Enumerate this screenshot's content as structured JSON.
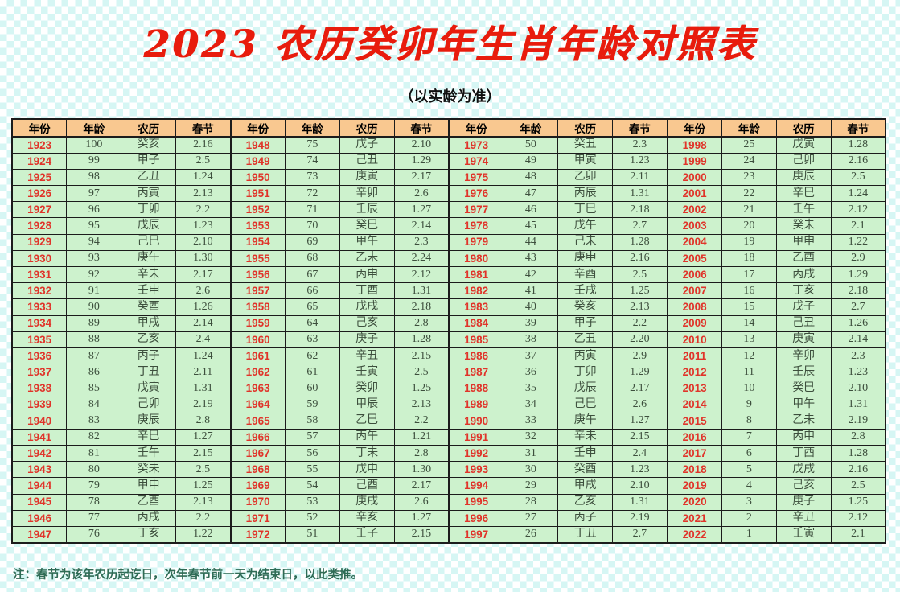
{
  "title": "2023 农历癸卯年生肖年龄对照表",
  "subtitle": "（以实龄为准）",
  "footnote": "注：春节为该年农历起讫日，次年春节前一天为结束日，以此类推。",
  "colors": {
    "title_red": "#e81c0d",
    "year_red": "#e0342a",
    "header_bg": "#f9c890",
    "cell_bg": "#cdf2cd",
    "checker": "#d6f6f4",
    "border": "#1c1c1c",
    "body_text": "#3d4f3d",
    "footnote_text": "#2f6b55"
  },
  "table": {
    "column_headers": [
      "年份",
      "年龄",
      "农历",
      "春节"
    ],
    "column_keys": [
      "year",
      "age",
      "lunar",
      "festival"
    ],
    "group_count": 4,
    "rows": [
      [
        [
          "1923",
          "100",
          "癸亥",
          "2.16"
        ],
        [
          "1948",
          "75",
          "戊子",
          "2.10"
        ],
        [
          "1973",
          "50",
          "癸丑",
          "2.3"
        ],
        [
          "1998",
          "25",
          "戊寅",
          "1.28"
        ]
      ],
      [
        [
          "1924",
          "99",
          "甲子",
          "2.5"
        ],
        [
          "1949",
          "74",
          "己丑",
          "1.29"
        ],
        [
          "1974",
          "49",
          "甲寅",
          "1.23"
        ],
        [
          "1999",
          "24",
          "己卯",
          "2.16"
        ]
      ],
      [
        [
          "1925",
          "98",
          "乙丑",
          "1.24"
        ],
        [
          "1950",
          "73",
          "庚寅",
          "2.17"
        ],
        [
          "1975",
          "48",
          "乙卯",
          "2.11"
        ],
        [
          "2000",
          "23",
          "庚辰",
          "2.5"
        ]
      ],
      [
        [
          "1926",
          "97",
          "丙寅",
          "2.13"
        ],
        [
          "1951",
          "72",
          "辛卯",
          "2.6"
        ],
        [
          "1976",
          "47",
          "丙辰",
          "1.31"
        ],
        [
          "2001",
          "22",
          "辛巳",
          "1.24"
        ]
      ],
      [
        [
          "1927",
          "96",
          "丁卯",
          "2.2"
        ],
        [
          "1952",
          "71",
          "壬辰",
          "1.27"
        ],
        [
          "1977",
          "46",
          "丁巳",
          "2.18"
        ],
        [
          "2002",
          "21",
          "壬午",
          "2.12"
        ]
      ],
      [
        [
          "1928",
          "95",
          "戊辰",
          "1.23"
        ],
        [
          "1953",
          "70",
          "癸巳",
          "2.14"
        ],
        [
          "1978",
          "45",
          "戊午",
          "2.7"
        ],
        [
          "2003",
          "20",
          "癸未",
          "2.1"
        ]
      ],
      [
        [
          "1929",
          "94",
          "己巳",
          "2.10"
        ],
        [
          "1954",
          "69",
          "甲午",
          "2.3"
        ],
        [
          "1979",
          "44",
          "己未",
          "1.28"
        ],
        [
          "2004",
          "19",
          "甲申",
          "1.22"
        ]
      ],
      [
        [
          "1930",
          "93",
          "庚午",
          "1.30"
        ],
        [
          "1955",
          "68",
          "乙未",
          "2.24"
        ],
        [
          "1980",
          "43",
          "庚申",
          "2.16"
        ],
        [
          "2005",
          "18",
          "乙酉",
          "2.9"
        ]
      ],
      [
        [
          "1931",
          "92",
          "辛未",
          "2.17"
        ],
        [
          "1956",
          "67",
          "丙申",
          "2.12"
        ],
        [
          "1981",
          "42",
          "辛酉",
          "2.5"
        ],
        [
          "2006",
          "17",
          "丙戌",
          "1.29"
        ]
      ],
      [
        [
          "1932",
          "91",
          "壬申",
          "2.6"
        ],
        [
          "1957",
          "66",
          "丁酉",
          "1.31"
        ],
        [
          "1982",
          "41",
          "壬戌",
          "1.25"
        ],
        [
          "2007",
          "16",
          "丁亥",
          "2.18"
        ]
      ],
      [
        [
          "1933",
          "90",
          "癸酉",
          "1.26"
        ],
        [
          "1958",
          "65",
          "戊戌",
          "2.18"
        ],
        [
          "1983",
          "40",
          "癸亥",
          "2.13"
        ],
        [
          "2008",
          "15",
          "戊子",
          "2.7"
        ]
      ],
      [
        [
          "1934",
          "89",
          "甲戌",
          "2.14"
        ],
        [
          "1959",
          "64",
          "己亥",
          "2.8"
        ],
        [
          "1984",
          "39",
          "甲子",
          "2.2"
        ],
        [
          "2009",
          "14",
          "己丑",
          "1.26"
        ]
      ],
      [
        [
          "1935",
          "88",
          "乙亥",
          "2.4"
        ],
        [
          "1960",
          "63",
          "庚子",
          "1.28"
        ],
        [
          "1985",
          "38",
          "乙丑",
          "2.20"
        ],
        [
          "2010",
          "13",
          "庚寅",
          "2.14"
        ]
      ],
      [
        [
          "1936",
          "87",
          "丙子",
          "1.24"
        ],
        [
          "1961",
          "62",
          "辛丑",
          "2.15"
        ],
        [
          "1986",
          "37",
          "丙寅",
          "2.9"
        ],
        [
          "2011",
          "12",
          "辛卯",
          "2.3"
        ]
      ],
      [
        [
          "1937",
          "86",
          "丁丑",
          "2.11"
        ],
        [
          "1962",
          "61",
          "壬寅",
          "2.5"
        ],
        [
          "1987",
          "36",
          "丁卯",
          "1.29"
        ],
        [
          "2012",
          "11",
          "壬辰",
          "1.23"
        ]
      ],
      [
        [
          "1938",
          "85",
          "戊寅",
          "1.31"
        ],
        [
          "1963",
          "60",
          "癸卯",
          "1.25"
        ],
        [
          "1988",
          "35",
          "戊辰",
          "2.17"
        ],
        [
          "2013",
          "10",
          "癸巳",
          "2.10"
        ]
      ],
      [
        [
          "1939",
          "84",
          "己卯",
          "2.19"
        ],
        [
          "1964",
          "59",
          "甲辰",
          "2.13"
        ],
        [
          "1989",
          "34",
          "己巳",
          "2.6"
        ],
        [
          "2014",
          "9",
          "甲午",
          "1.31"
        ]
      ],
      [
        [
          "1940",
          "83",
          "庚辰",
          "2.8"
        ],
        [
          "1965",
          "58",
          "乙巳",
          "2.2"
        ],
        [
          "1990",
          "33",
          "庚午",
          "1.27"
        ],
        [
          "2015",
          "8",
          "乙未",
          "2.19"
        ]
      ],
      [
        [
          "1941",
          "82",
          "辛巳",
          "1.27"
        ],
        [
          "1966",
          "57",
          "丙午",
          "1.21"
        ],
        [
          "1991",
          "32",
          "辛未",
          "2.15"
        ],
        [
          "2016",
          "7",
          "丙申",
          "2.8"
        ]
      ],
      [
        [
          "1942",
          "81",
          "壬午",
          "2.15"
        ],
        [
          "1967",
          "56",
          "丁未",
          "2.8"
        ],
        [
          "1992",
          "31",
          "壬申",
          "2.4"
        ],
        [
          "2017",
          "6",
          "丁酉",
          "1.28"
        ]
      ],
      [
        [
          "1943",
          "80",
          "癸未",
          "2.5"
        ],
        [
          "1968",
          "55",
          "戊申",
          "1.30"
        ],
        [
          "1993",
          "30",
          "癸酉",
          "1.23"
        ],
        [
          "2018",
          "5",
          "戊戌",
          "2.16"
        ]
      ],
      [
        [
          "1944",
          "79",
          "甲申",
          "1.25"
        ],
        [
          "1969",
          "54",
          "己酉",
          "2.17"
        ],
        [
          "1994",
          "29",
          "甲戌",
          "2.10"
        ],
        [
          "2019",
          "4",
          "己亥",
          "2.5"
        ]
      ],
      [
        [
          "1945",
          "78",
          "乙酉",
          "2.13"
        ],
        [
          "1970",
          "53",
          "庚戌",
          "2.6"
        ],
        [
          "1995",
          "28",
          "乙亥",
          "1.31"
        ],
        [
          "2020",
          "3",
          "庚子",
          "1.25"
        ]
      ],
      [
        [
          "1946",
          "77",
          "丙戌",
          "2.2"
        ],
        [
          "1971",
          "52",
          "辛亥",
          "1.27"
        ],
        [
          "1996",
          "27",
          "丙子",
          "2.19"
        ],
        [
          "2021",
          "2",
          "辛丑",
          "2.12"
        ]
      ],
      [
        [
          "1947",
          "76",
          "丁亥",
          "1.22"
        ],
        [
          "1972",
          "51",
          "壬子",
          "2.15"
        ],
        [
          "1997",
          "26",
          "丁丑",
          "2.7"
        ],
        [
          "2022",
          "1",
          "壬寅",
          "2.1"
        ]
      ]
    ]
  }
}
